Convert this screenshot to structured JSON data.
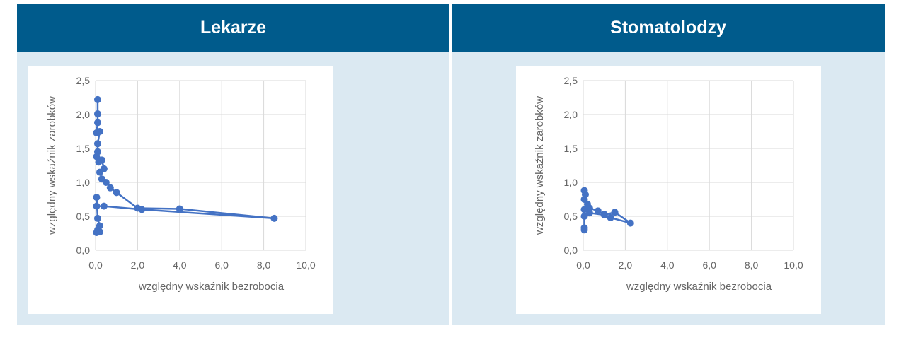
{
  "panels": [
    {
      "title": "Lekarze"
    },
    {
      "title": "Stomatolodzy"
    }
  ],
  "chart_data": [
    {
      "type": "scatter",
      "title": "",
      "xlabel": "względny wskaźnik bezrobocia",
      "ylabel": "względny wskaźnik zarobków",
      "xlim": [
        0,
        10
      ],
      "ylim": [
        0,
        2.5
      ],
      "grid": true,
      "color": "#4472c4",
      "xticks": [
        "0,0",
        "2,0",
        "4,0",
        "6,0",
        "8,0",
        "10,0"
      ],
      "yticks": [
        "0,0",
        "0,5",
        "1,0",
        "1,5",
        "2,0",
        "2,5"
      ],
      "points": [
        [
          0.1,
          2.22
        ],
        [
          0.1,
          2.01
        ],
        [
          0.1,
          1.88
        ],
        [
          0.05,
          1.73
        ],
        [
          0.2,
          1.75
        ],
        [
          0.1,
          1.57
        ],
        [
          0.1,
          1.45
        ],
        [
          0.05,
          1.38
        ],
        [
          0.15,
          1.3
        ],
        [
          0.3,
          1.33
        ],
        [
          0.4,
          1.2
        ],
        [
          0.2,
          1.15
        ],
        [
          0.3,
          1.05
        ],
        [
          0.5,
          1.0
        ],
        [
          0.7,
          0.92
        ],
        [
          1.0,
          0.85
        ],
        [
          2.0,
          0.62
        ],
        [
          4.0,
          0.61
        ],
        [
          8.5,
          0.47
        ],
        [
          2.2,
          0.6
        ],
        [
          0.4,
          0.65
        ],
        [
          0.05,
          0.65
        ],
        [
          0.05,
          0.78
        ],
        [
          0.1,
          0.47
        ],
        [
          0.2,
          0.36
        ],
        [
          0.1,
          0.3
        ],
        [
          0.2,
          0.27
        ],
        [
          0.05,
          0.26
        ]
      ]
    },
    {
      "type": "scatter",
      "title": "",
      "xlabel": "względny wskaźnik bezrobocia",
      "ylabel": "względny wskaźnik zarobków",
      "xlim": [
        0,
        10
      ],
      "ylim": [
        0,
        2.5
      ],
      "grid": true,
      "color": "#4472c4",
      "xticks": [
        "0,0",
        "2,0",
        "4,0",
        "6,0",
        "8,0",
        "10,0"
      ],
      "yticks": [
        "0,0",
        "0,5",
        "1,0",
        "1,5",
        "2,0",
        "2,5"
      ],
      "points": [
        [
          0.05,
          0.88
        ],
        [
          0.1,
          0.82
        ],
        [
          0.05,
          0.75
        ],
        [
          0.2,
          0.68
        ],
        [
          0.3,
          0.62
        ],
        [
          0.7,
          0.58
        ],
        [
          1.0,
          0.53
        ],
        [
          1.3,
          0.48
        ],
        [
          2.25,
          0.4
        ],
        [
          1.5,
          0.56
        ],
        [
          1.0,
          0.52
        ],
        [
          0.3,
          0.55
        ],
        [
          0.05,
          0.6
        ],
        [
          0.05,
          0.5
        ],
        [
          0.05,
          0.33
        ],
        [
          0.05,
          0.3
        ]
      ]
    }
  ]
}
